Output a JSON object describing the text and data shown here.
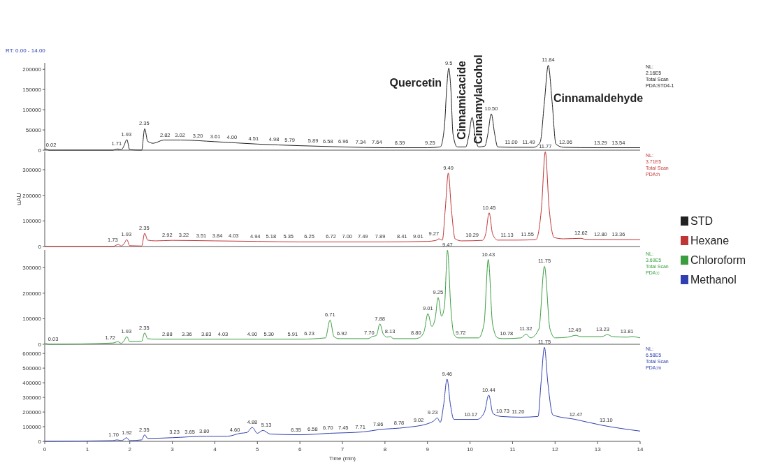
{
  "chart_data": [
    {
      "type": "line",
      "title": "RT: 0.00 - 14.00",
      "xlim": [
        0,
        14
      ],
      "ylim": [
        0,
        216000
      ],
      "yticks": [
        0,
        50000,
        100000,
        150000,
        200000
      ],
      "tick_labels": "y",
      "legend": "right",
      "x": [
        0,
        0.02,
        0.1,
        1.6,
        1.71,
        1.8,
        1.86,
        1.93,
        2.0,
        2.28,
        2.35,
        2.42,
        2.55,
        2.8,
        3.2,
        4,
        5,
        6,
        7,
        8,
        9,
        9.3,
        9.4,
        9.45,
        9.5,
        9.55,
        9.6,
        9.7,
        9.9,
        9.97,
        10.05,
        10.12,
        10.2,
        10.35,
        10.42,
        10.5,
        10.58,
        10.65,
        11.0,
        11.5,
        11.65,
        11.75,
        11.84,
        11.93,
        12.02,
        12.2,
        13,
        14
      ],
      "series": [
        {
          "name": "STD",
          "color": "#222222",
          "values": [
            0,
            3000,
            0,
            0,
            3000,
            1000,
            10000,
            26000,
            1000,
            0,
            53000,
            22000,
            17000,
            25000,
            25000,
            21000,
            15000,
            11000,
            8000,
            6000,
            6000,
            8000,
            60000,
            150000,
            203000,
            150000,
            40000,
            8000,
            8000,
            35000,
            81000,
            35000,
            8000,
            10000,
            40000,
            90000,
            40000,
            8000,
            7000,
            7000,
            20000,
            120000,
            210000,
            120000,
            15000,
            7000,
            6000,
            6000
          ]
        }
      ],
      "annotations": [
        "NL:\n2.16E5\nTotal Scan\nPDA:STD4-1",
        {
          "text": "Quercetin",
          "x": 9.5,
          "y": 157000
        },
        {
          "text": "Cinnamicacide",
          "x": 9.95,
          "y": 26000
        },
        {
          "text": "Cinnamylalcohol",
          "x": 10.36,
          "y": 15000
        },
        {
          "text": "Cinnamaldehyde",
          "x": 11.93,
          "y": 120000
        },
        {
          "text": "0.02",
          "x": 0.15,
          "y": 0
        },
        {
          "text": "1.71",
          "x": 1.69,
          "y": 3000
        },
        {
          "text": "1.93",
          "x": 1.92,
          "y": 26000
        },
        {
          "text": "2.35",
          "x": 2.34,
          "y": 53000
        },
        {
          "text": "2.82",
          "x": 2.83,
          "y": 25000
        },
        {
          "text": "3.02",
          "x": 3.18,
          "y": 25000
        },
        {
          "text": "3.20",
          "x": 3.6,
          "y": 23000
        },
        {
          "text": "3.61",
          "x": 4.01,
          "y": 21000
        },
        {
          "text": "4.00",
          "x": 4.4,
          "y": 19000
        },
        {
          "text": "4.51",
          "x": 4.91,
          "y": 15000
        },
        {
          "text": "4.98",
          "x": 5.39,
          "y": 13000
        },
        {
          "text": "5.79",
          "x": 5.76,
          "y": 12000
        },
        {
          "text": "5.89",
          "x": 6.31,
          "y": 10000
        },
        {
          "text": "6.58",
          "x": 6.66,
          "y": 9000
        },
        {
          "text": "6.96",
          "x": 7.02,
          "y": 8000
        },
        {
          "text": "7.34",
          "x": 7.43,
          "y": 7000
        },
        {
          "text": "7.64",
          "x": 7.81,
          "y": 7000
        },
        {
          "text": "8.39",
          "x": 8.35,
          "y": 6000
        },
        {
          "text": "9.25",
          "x": 9.06,
          "y": 6000
        },
        {
          "text": "9.5",
          "x": 9.5,
          "y": 203000
        },
        {
          "text": "10.50",
          "x": 10.5,
          "y": 90000
        },
        {
          "text": "11.00",
          "x": 10.97,
          "y": 7000
        },
        {
          "text": "11.49",
          "x": 11.38,
          "y": 7000
        },
        {
          "text": "11.84",
          "x": 11.84,
          "y": 210000
        },
        {
          "text": "12.06",
          "x": 12.25,
          "y": 7000
        },
        {
          "text": "13.29",
          "x": 13.07,
          "y": 6000
        },
        {
          "text": "13.54",
          "x": 13.49,
          "y": 6000
        }
      ]
    },
    {
      "type": "line",
      "ylabel": "uAU",
      "xlim": [
        0,
        14
      ],
      "ylim": [
        0,
        371000
      ],
      "yticks": [
        0,
        100000,
        200000,
        300000
      ],
      "tick_labels": "y",
      "legend": "right",
      "x": [
        0,
        1.6,
        1.73,
        1.8,
        1.87,
        1.93,
        2.0,
        2.28,
        2.35,
        2.42,
        2.6,
        3,
        4,
        5,
        6,
        7,
        8,
        9,
        9.2,
        9.27,
        9.35,
        9.42,
        9.49,
        9.56,
        9.65,
        9.8,
        10.29,
        10.37,
        10.45,
        10.53,
        10.65,
        11.13,
        11.55,
        11.68,
        11.77,
        11.86,
        11.98,
        12.2,
        12.62,
        12.7,
        13.36,
        14
      ],
      "series": [
        {
          "name": "Hexane",
          "color": "#c03535",
          "values": [
            0,
            0,
            8000,
            2000,
            12000,
            27000,
            3000,
            2000,
            52000,
            25000,
            22000,
            24000,
            22000,
            20000,
            18000,
            18000,
            18000,
            20000,
            24000,
            30000,
            25000,
            150000,
            287000,
            150000,
            30000,
            22000,
            24000,
            50000,
            132000,
            50000,
            25000,
            25000,
            27000,
            150000,
            370000,
            150000,
            35000,
            30000,
            32000,
            28000,
            27000,
            27000
          ]
        }
      ],
      "annotations": [
        "NL:\n3.71E5\nTotal Scan\nPDA:h",
        {
          "text": "1.73",
          "x": 1.6,
          "y": 5000
        },
        {
          "text": "1.93",
          "x": 1.92,
          "y": 27000
        },
        {
          "text": "2.35",
          "x": 2.34,
          "y": 52000
        },
        {
          "text": "2.92",
          "x": 2.88,
          "y": 24000
        },
        {
          "text": "3.22",
          "x": 3.27,
          "y": 24000
        },
        {
          "text": "3.51",
          "x": 3.68,
          "y": 23000
        },
        {
          "text": "3.84",
          "x": 4.06,
          "y": 22000
        },
        {
          "text": "4.03",
          "x": 4.44,
          "y": 21000
        },
        {
          "text": "4.94",
          "x": 4.95,
          "y": 20000
        },
        {
          "text": "5.18",
          "x": 5.32,
          "y": 20000
        },
        {
          "text": "5.35",
          "x": 5.73,
          "y": 19000
        },
        {
          "text": "6.25",
          "x": 6.22,
          "y": 18000
        },
        {
          "text": "6.72",
          "x": 6.73,
          "y": 18000
        },
        {
          "text": "7.00",
          "x": 7.11,
          "y": 18000
        },
        {
          "text": "7.49",
          "x": 7.48,
          "y": 18000
        },
        {
          "text": "7.89",
          "x": 7.89,
          "y": 18000
        },
        {
          "text": "8.41",
          "x": 8.4,
          "y": 19000
        },
        {
          "text": "9.01",
          "x": 8.78,
          "y": 20000
        },
        {
          "text": "9.27",
          "x": 9.15,
          "y": 30000
        },
        {
          "text": "9.49",
          "x": 9.49,
          "y": 287000
        },
        {
          "text": "10.29",
          "x": 10.05,
          "y": 24000
        },
        {
          "text": "10.45",
          "x": 10.45,
          "y": 132000
        },
        {
          "text": "11.13",
          "x": 10.87,
          "y": 25000
        },
        {
          "text": "11.55",
          "x": 11.35,
          "y": 27000
        },
        {
          "text": "11.77",
          "x": 11.77,
          "y": 370000
        },
        {
          "text": "12.62",
          "x": 12.61,
          "y": 32000
        },
        {
          "text": "12.80",
          "x": 13.07,
          "y": 28000
        },
        {
          "text": "13.36",
          "x": 13.49,
          "y": 27000
        }
      ]
    },
    {
      "type": "line",
      "xlim": [
        0,
        14
      ],
      "ylim": [
        0,
        369000
      ],
      "yticks": [
        0,
        100000,
        200000,
        300000
      ],
      "tick_labels": "y",
      "legend": "right",
      "x": [
        0,
        0.03,
        0.1,
        1.6,
        1.72,
        1.8,
        1.87,
        1.93,
        2.0,
        2.28,
        2.35,
        2.42,
        2.6,
        4,
        5,
        6,
        6.6,
        6.71,
        6.8,
        6.92,
        7.6,
        7.7,
        7.8,
        7.88,
        7.96,
        8.05,
        8.13,
        8.2,
        8.7,
        8.8,
        8.92,
        9.01,
        9.1,
        9.18,
        9.25,
        9.33,
        9.4,
        9.47,
        9.55,
        9.62,
        9.72,
        10.2,
        10.33,
        10.43,
        10.53,
        10.65,
        10.78,
        11.2,
        11.32,
        11.42,
        11.62,
        11.75,
        11.88,
        12.0,
        12.3,
        12.49,
        12.6,
        13.1,
        13.23,
        13.35,
        13.7,
        13.81,
        14
      ],
      "series": [
        {
          "name": "Chloroform",
          "color": "#3a9e40",
          "values": [
            0,
            3000,
            0,
            5000,
            10000,
            4000,
            15000,
            30000,
            10000,
            12000,
            45000,
            22000,
            20000,
            20000,
            20000,
            20000,
            25000,
            95000,
            30000,
            22000,
            22000,
            30000,
            35000,
            80000,
            40000,
            28000,
            30000,
            22000,
            22000,
            25000,
            50000,
            120000,
            70000,
            100000,
            183000,
            110000,
            150000,
            368000,
            140000,
            40000,
            25000,
            25000,
            80000,
            332000,
            80000,
            25000,
            22000,
            25000,
            40000,
            25000,
            60000,
            305000,
            60000,
            25000,
            28000,
            35000,
            30000,
            30000,
            38000,
            30000,
            28000,
            30000,
            25000
          ]
        }
      ],
      "annotations": [
        "NL:\n3.69E5\nTotal Scan\nPDA:c",
        {
          "text": "0.03",
          "x": 0.2,
          "y": 1000
        },
        {
          "text": "1.72",
          "x": 1.54,
          "y": 5000
        },
        {
          "text": "1.93",
          "x": 1.92,
          "y": 30000
        },
        {
          "text": "2.35",
          "x": 2.34,
          "y": 45000
        },
        {
          "text": "2.88",
          "x": 2.88,
          "y": 20000
        },
        {
          "text": "3.36",
          "x": 3.34,
          "y": 20000
        },
        {
          "text": "3.83",
          "x": 3.8,
          "y": 20000
        },
        {
          "text": "4.03",
          "x": 4.19,
          "y": 20000
        },
        {
          "text": "4.90",
          "x": 4.88,
          "y": 20000
        },
        {
          "text": "5.30",
          "x": 5.27,
          "y": 20000
        },
        {
          "text": "5.91",
          "x": 5.83,
          "y": 20000
        },
        {
          "text": "6.23",
          "x": 6.22,
          "y": 21000
        },
        {
          "text": "6.71",
          "x": 6.71,
          "y": 95000
        },
        {
          "text": "6.92",
          "x": 6.99,
          "y": 22000
        },
        {
          "text": "7.70",
          "x": 7.63,
          "y": 25000
        },
        {
          "text": "7.88",
          "x": 7.88,
          "y": 80000
        },
        {
          "text": "8.13",
          "x": 8.12,
          "y": 30000
        },
        {
          "text": "8.80",
          "x": 8.73,
          "y": 24000
        },
        {
          "text": "9.01",
          "x": 9.01,
          "y": 120000
        },
        {
          "text": "9.25",
          "x": 9.25,
          "y": 183000
        },
        {
          "text": "9.47",
          "x": 9.47,
          "y": 368000
        },
        {
          "text": "9.72",
          "x": 9.78,
          "y": 25000
        },
        {
          "text": "10.43",
          "x": 10.43,
          "y": 332000
        },
        {
          "text": "10.78",
          "x": 10.86,
          "y": 22000
        },
        {
          "text": "11.32",
          "x": 11.31,
          "y": 40000
        },
        {
          "text": "11.75",
          "x": 11.75,
          "y": 305000
        },
        {
          "text": "12.49",
          "x": 12.46,
          "y": 35000
        },
        {
          "text": "13.23",
          "x": 13.12,
          "y": 38000
        },
        {
          "text": "13.81",
          "x": 13.69,
          "y": 30000
        }
      ]
    },
    {
      "type": "line",
      "xlabel": "Time (min)",
      "xlim": [
        0,
        14
      ],
      "xticks": [
        0,
        1,
        2,
        3,
        4,
        5,
        6,
        7,
        8,
        9,
        10,
        11,
        12,
        13,
        14
      ],
      "ylim": [
        0,
        658000
      ],
      "yticks": [
        0,
        100000,
        200000,
        300000,
        400000,
        500000,
        600000
      ],
      "legend": "right",
      "x": [
        0,
        1.6,
        1.7,
        1.8,
        1.86,
        1.92,
        2.0,
        2.28,
        2.35,
        2.42,
        3,
        3.8,
        4.3,
        4.6,
        4.75,
        4.88,
        5.0,
        5.13,
        5.3,
        6,
        6.7,
        7.5,
        7.86,
        8.5,
        9,
        9.15,
        9.23,
        9.3,
        9.38,
        9.46,
        9.54,
        9.62,
        10.17,
        10.34,
        10.44,
        10.54,
        10.73,
        11.2,
        11.6,
        11.67,
        11.75,
        11.83,
        11.95,
        12.47,
        13.1,
        14
      ],
      "series": [
        {
          "name": "Methanol",
          "color": "#3040b0",
          "values": [
            0,
            5000,
            10000,
            5000,
            12000,
            25000,
            5000,
            10000,
            45000,
            20000,
            25000,
            35000,
            35000,
            55000,
            60000,
            95000,
            55000,
            75000,
            50000,
            45000,
            55000,
            65000,
            80000,
            95000,
            120000,
            140000,
            160000,
            130000,
            250000,
            425000,
            250000,
            150000,
            150000,
            200000,
            316000,
            190000,
            170000,
            165000,
            170000,
            400000,
            642000,
            400000,
            180000,
            150000,
            110000,
            70000
          ]
        }
      ],
      "annotations": [
        "NL:\n6.58E5\nTotal Scan\nPDA:m",
        {
          "text": "1.70",
          "x": 1.62,
          "y": 10000
        },
        {
          "text": "1.92",
          "x": 1.93,
          "y": 25000
        },
        {
          "text": "2.35",
          "x": 2.34,
          "y": 45000
        },
        {
          "text": "3.23",
          "x": 3.05,
          "y": 27000
        },
        {
          "text": "3.65",
          "x": 3.41,
          "y": 30000
        },
        {
          "text": "3.80",
          "x": 3.75,
          "y": 35000
        },
        {
          "text": "4.60",
          "x": 4.47,
          "y": 45000
        },
        {
          "text": "4.88",
          "x": 4.88,
          "y": 95000
        },
        {
          "text": "5.13",
          "x": 5.21,
          "y": 75000
        },
        {
          "text": "6.35",
          "x": 5.91,
          "y": 45000
        },
        {
          "text": "6.58",
          "x": 6.3,
          "y": 50000
        },
        {
          "text": "6.70",
          "x": 6.66,
          "y": 55000
        },
        {
          "text": "7.45",
          "x": 7.02,
          "y": 58000
        },
        {
          "text": "7.71",
          "x": 7.42,
          "y": 64000
        },
        {
          "text": "7.86",
          "x": 7.84,
          "y": 80000
        },
        {
          "text": "8.78",
          "x": 8.33,
          "y": 90000
        },
        {
          "text": "9.02",
          "x": 8.79,
          "y": 110000
        },
        {
          "text": "9.23",
          "x": 9.12,
          "y": 160000
        },
        {
          "text": "9.46",
          "x": 9.46,
          "y": 425000
        },
        {
          "text": "10.17",
          "x": 10.02,
          "y": 150000
        },
        {
          "text": "10.44",
          "x": 10.44,
          "y": 316000
        },
        {
          "text": "10.73",
          "x": 10.77,
          "y": 170000
        },
        {
          "text": "11.20",
          "x": 11.13,
          "y": 165000
        },
        {
          "text": "11.75",
          "x": 11.75,
          "y": 642000
        },
        {
          "text": "12.47",
          "x": 12.49,
          "y": 150000
        },
        {
          "text": "13.10",
          "x": 13.2,
          "y": 110000
        }
      ]
    }
  ]
}
